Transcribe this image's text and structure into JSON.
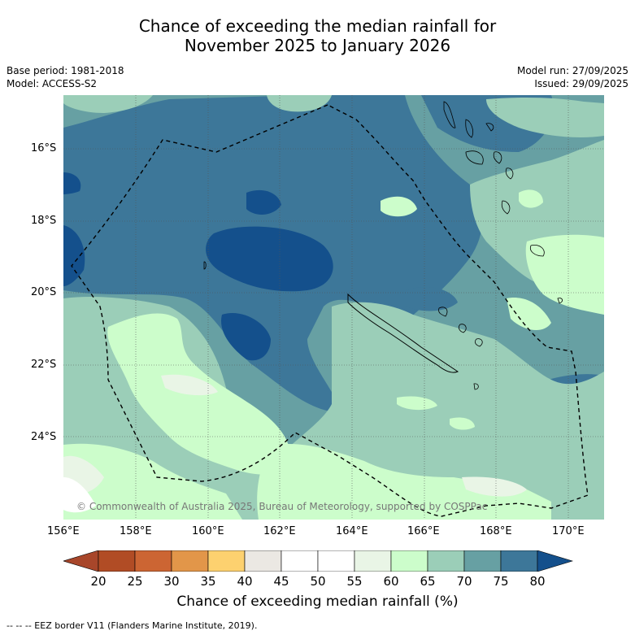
{
  "title": {
    "line1": "Chance of exceeding the median rainfall for",
    "line2": "November 2025 to January 2026"
  },
  "meta": {
    "base_period": "Base period: 1981-2018",
    "model": "Model: ACCESS-S2",
    "model_run": "Model run: 27/09/2025",
    "issued": "Issued: 29/09/2025"
  },
  "map": {
    "copyright": "© Commonwealth of Australia 2025, Bureau of Meteorology, supported by COSPPac",
    "x_ticks": [
      "156°E",
      "158°E",
      "160°E",
      "162°E",
      "164°E",
      "166°E",
      "168°E",
      "170°E"
    ],
    "y_ticks": [
      "16°S",
      "18°S",
      "20°S",
      "22°S",
      "24°S"
    ]
  },
  "colorbar": {
    "ticks": [
      "20",
      "25",
      "30",
      "35",
      "40",
      "45",
      "50",
      "55",
      "60",
      "65",
      "70",
      "75",
      "80"
    ],
    "colors": {
      "lt20": "#a8462a",
      "20-25": "#b14c25",
      "25-30": "#cc6533",
      "30-35": "#e29649",
      "35-40": "#fdd16f",
      "40-45": "#ebe8e3",
      "45-50": "#ffffff",
      "50-55": "#ffffff",
      "55-60": "#e9f5e6",
      "60-65": "#ccfdcb",
      "65-70": "#9bceb8",
      "70-75": "#67a0a3",
      "75-80": "#3d7799",
      "gt80": "#14508c"
    },
    "label": "Chance of exceeding median rainfall (%)"
  },
  "footnote": "--  --  -- EEZ border V11 (Flanders Marine Institute, 2019)."
}
